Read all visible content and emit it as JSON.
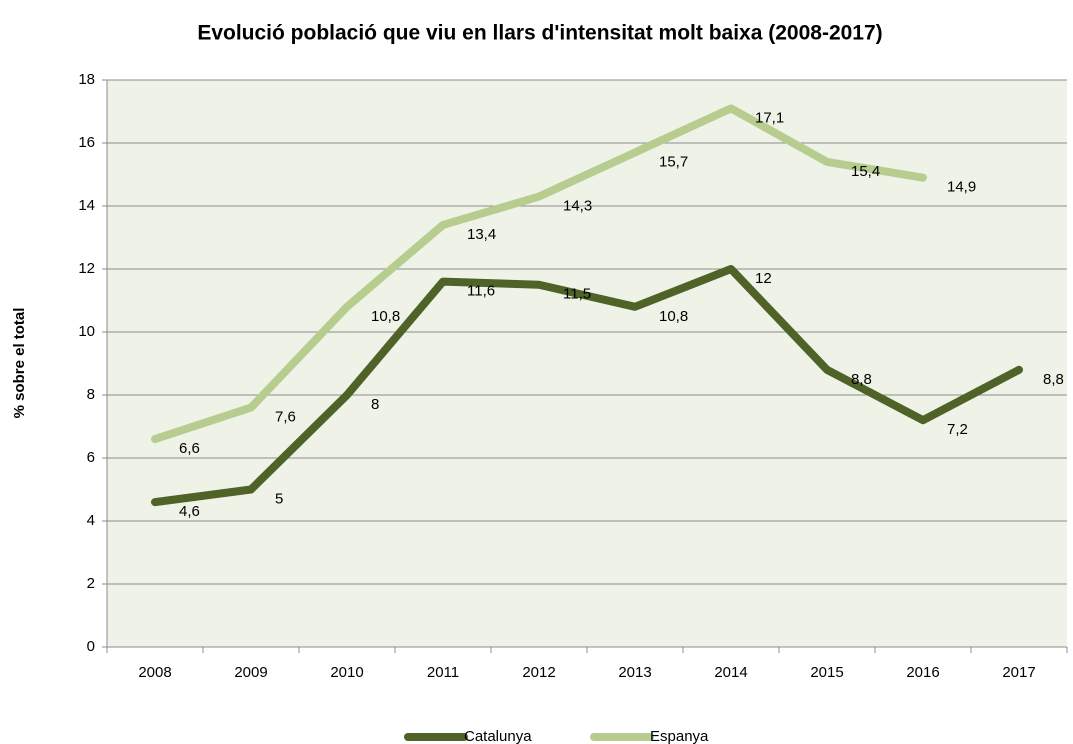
{
  "chart_data": {
    "type": "line",
    "title": "Evolució població que viu en llars d'intensitat molt baixa (2008-2017)",
    "y_label": "% sobre el total",
    "categories": [
      "2008",
      "2009",
      "2010",
      "2011",
      "2012",
      "2013",
      "2014",
      "2015",
      "2016",
      "2017"
    ],
    "series": [
      {
        "name": "Catalunya",
        "color": "#4f6228",
        "values": [
          4.6,
          5,
          8,
          11.6,
          11.5,
          10.8,
          12,
          8.8,
          7.2,
          8.8
        ],
        "value_labels": [
          "4,6",
          "5",
          "8",
          "11,6",
          "11,5",
          "10,8",
          "12",
          "8,8",
          "7,2",
          "8,8"
        ]
      },
      {
        "name": "Espanya",
        "color": "#b7cd8f",
        "values": [
          6.6,
          7.6,
          10.8,
          13.4,
          14.3,
          15.7,
          17.1,
          15.4,
          14.9,
          null
        ],
        "value_labels": [
          "6,6",
          "7,6",
          "10,8",
          "13,4",
          "14,3",
          "15,7",
          "17,1",
          "15,4",
          "14,9",
          null
        ]
      }
    ],
    "ylim": [
      0,
      18
    ],
    "yticks": [
      0,
      2,
      4,
      6,
      8,
      10,
      12,
      14,
      16,
      18
    ],
    "grid": true,
    "legend": "bottom"
  }
}
